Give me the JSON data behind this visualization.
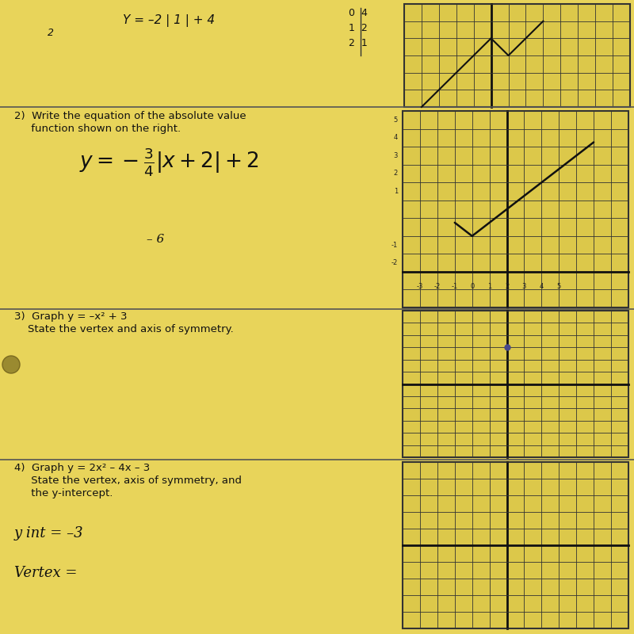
{
  "bg_color": "#C8B830",
  "paper_color": "#E8D45A",
  "text_color": "#111111",
  "grid_line_color": "#333333",
  "grid_bg_color": "#DCC84A",
  "axis_color": "#111111",
  "dot_color": "#4a4a8a",
  "title3_text": "3)  Graph y = –x² + 3",
  "title3_sub": "    State the vertex and axis of symmetry.",
  "q2_text_line1": "2)  Write the equation of the absolute value",
  "q2_text_line2": "     function shown on the right.",
  "q4_text_line1": "4)  Graph y = 2x² – 4x – 3",
  "q4_text_line2": "     State the vertex, axis of symmetry, and",
  "q4_text_line3": "     the y-intercept.",
  "q4_answer1": "y int = –3",
  "q4_answer2": "Vertex =",
  "top_handwritten": "Y = –2 | 1 | + 4",
  "top_table": "0  4\n1  2\n2  1"
}
